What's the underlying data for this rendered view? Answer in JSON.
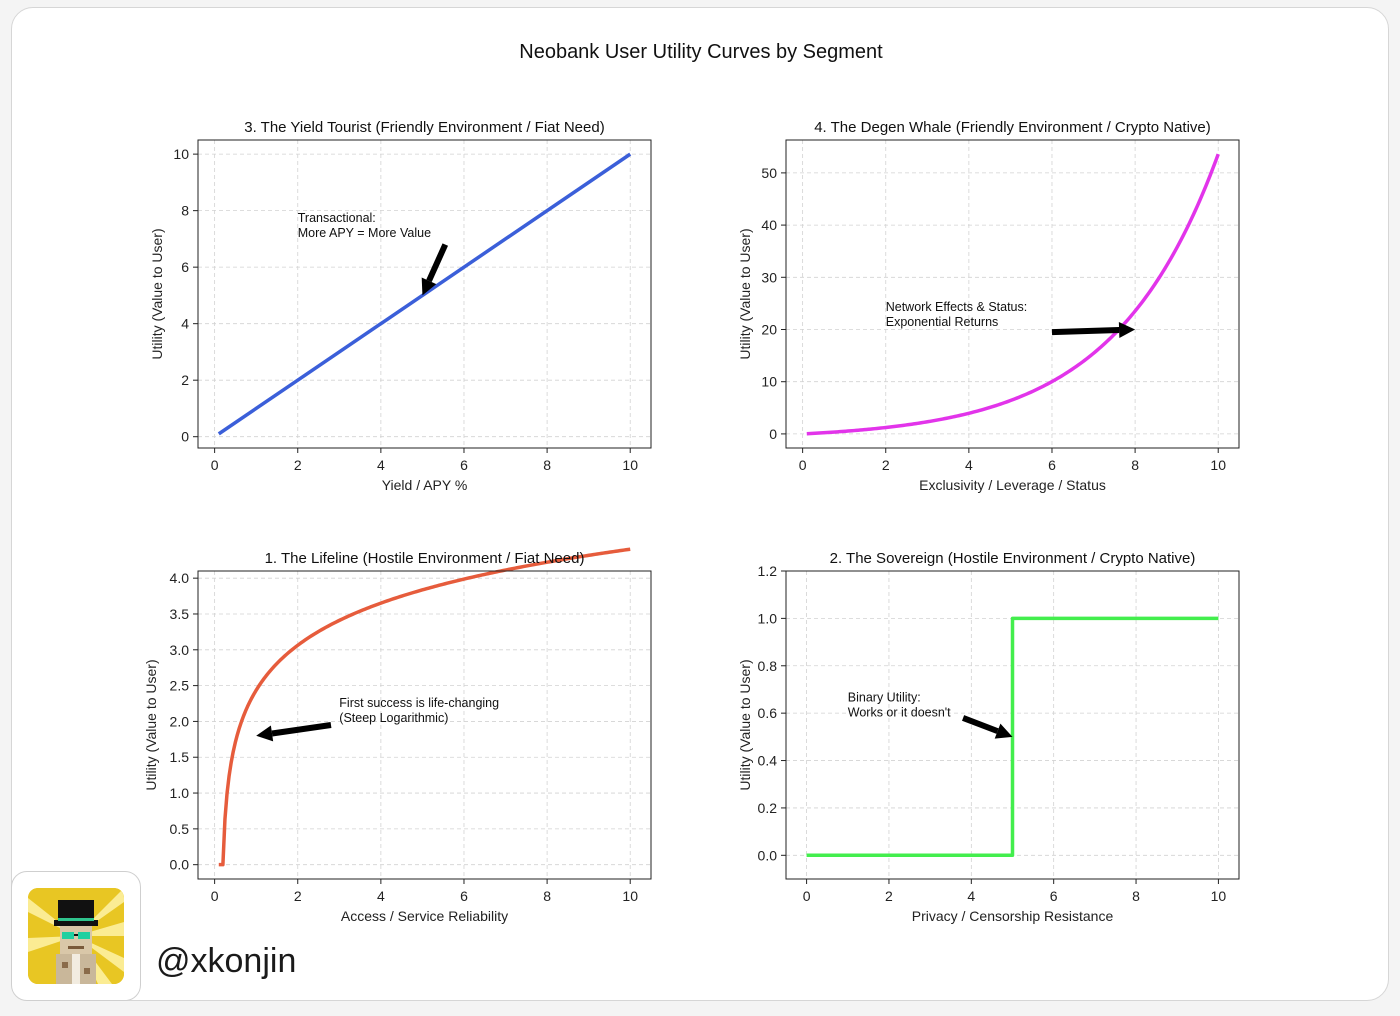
{
  "figure": {
    "title": "Neobank User Utility Curves by Segment",
    "handle": "@xkonjin"
  },
  "chart_data": [
    {
      "type": "line",
      "title": "3. The Yield Tourist (Friendly Environment / Fiat Need)",
      "xlabel": "Yield / APY %",
      "ylabel": "Utility (Value to User)",
      "xlim": [
        -0.4,
        10.5
      ],
      "ylim": [
        -0.4,
        10.5
      ],
      "xticks": [
        0,
        2,
        4,
        6,
        8,
        10
      ],
      "yticks": [
        0,
        2,
        4,
        6,
        8,
        10
      ],
      "ytick_labels": [
        "0",
        "2",
        "4",
        "6",
        "8",
        "10"
      ],
      "grid": true,
      "color": "#3b5fd9",
      "x": [
        0.1,
        10
      ],
      "y": [
        0.1,
        10
      ],
      "annotation": {
        "lines": [
          "Transactional:",
          "More APY = More Value"
        ],
        "text_x": 2.0,
        "text_y": 7.6,
        "arrow_from": [
          5.55,
          6.8
        ],
        "arrow_to": [
          5.0,
          5.0
        ]
      }
    },
    {
      "type": "line",
      "title": "4. The Degen Whale (Friendly Environment / Crypto Native)",
      "xlabel": "Exclusivity / Leverage / Status",
      "ylabel": "Utility (Value to User)",
      "xlim": [
        -0.4,
        10.5
      ],
      "ylim": [
        -2.7,
        56.3
      ],
      "xticks": [
        0,
        2,
        4,
        6,
        8,
        10
      ],
      "yticks": [
        0,
        10,
        20,
        30,
        40,
        50
      ],
      "ytick_labels": [
        "0",
        "10",
        "20",
        "30",
        "40",
        "50"
      ],
      "grid": true,
      "color": "#e234ea",
      "function": "exp",
      "x_range": [
        0.1,
        10
      ],
      "annotation": {
        "lines": [
          "Network Effects & Status:",
          "Exponential Returns"
        ],
        "text_x": 2.0,
        "text_y": 23.5,
        "arrow_from": [
          6.0,
          19.5
        ],
        "arrow_to": [
          8.0,
          20.0
        ]
      }
    },
    {
      "type": "line",
      "title": "1. The Lifeline (Hostile Environment / Fiat Need)",
      "xlabel": "Access / Service Reliability",
      "ylabel": "Utility (Value to User)",
      "xlim": [
        -0.4,
        10.5
      ],
      "ylim": [
        -0.2,
        4.1
      ],
      "xticks": [
        0,
        2,
        4,
        6,
        8,
        10
      ],
      "yticks": [
        0,
        0.5,
        1,
        1.5,
        2,
        2.5,
        3,
        3.5,
        4
      ],
      "ytick_labels": [
        "0.0",
        "0.5",
        "1.0",
        "1.5",
        "2.0",
        "2.5",
        "3.0",
        "3.5",
        "4.0"
      ],
      "grid": true,
      "color": "#e65c3c",
      "function": "log",
      "x_range": [
        0.1,
        10
      ],
      "annotation": {
        "lines": [
          "First success is life-changing",
          "(Steep Logarithmic)"
        ],
        "text_x": 3.0,
        "text_y": 2.2,
        "arrow_from": [
          2.8,
          1.95
        ],
        "arrow_to": [
          1.0,
          1.8
        ]
      }
    },
    {
      "type": "line",
      "title": "2. The Sovereign (Hostile Environment / Crypto Native)",
      "xlabel": "Privacy / Censorship Resistance",
      "ylabel": "Utility (Value to User)",
      "xlim": [
        -0.5,
        10.5
      ],
      "ylim": [
        -0.1,
        1.2
      ],
      "xticks": [
        0,
        2,
        4,
        6,
        8,
        10
      ],
      "yticks": [
        0,
        0.2,
        0.4,
        0.6,
        0.8,
        1.0,
        1.2
      ],
      "ytick_labels": [
        "0.0",
        "0.2",
        "0.4",
        "0.6",
        "0.8",
        "1.0",
        "1.2"
      ],
      "grid": true,
      "color": "#43ee4d",
      "x": [
        0,
        5,
        5,
        10
      ],
      "y": [
        0,
        0,
        1,
        1
      ],
      "annotation": {
        "lines": [
          "Binary Utility:",
          "Works or it doesn't"
        ],
        "text_x": 1.0,
        "text_y": 0.65,
        "arrow_from": [
          3.8,
          0.58
        ],
        "arrow_to": [
          5.0,
          0.5
        ]
      }
    }
  ]
}
